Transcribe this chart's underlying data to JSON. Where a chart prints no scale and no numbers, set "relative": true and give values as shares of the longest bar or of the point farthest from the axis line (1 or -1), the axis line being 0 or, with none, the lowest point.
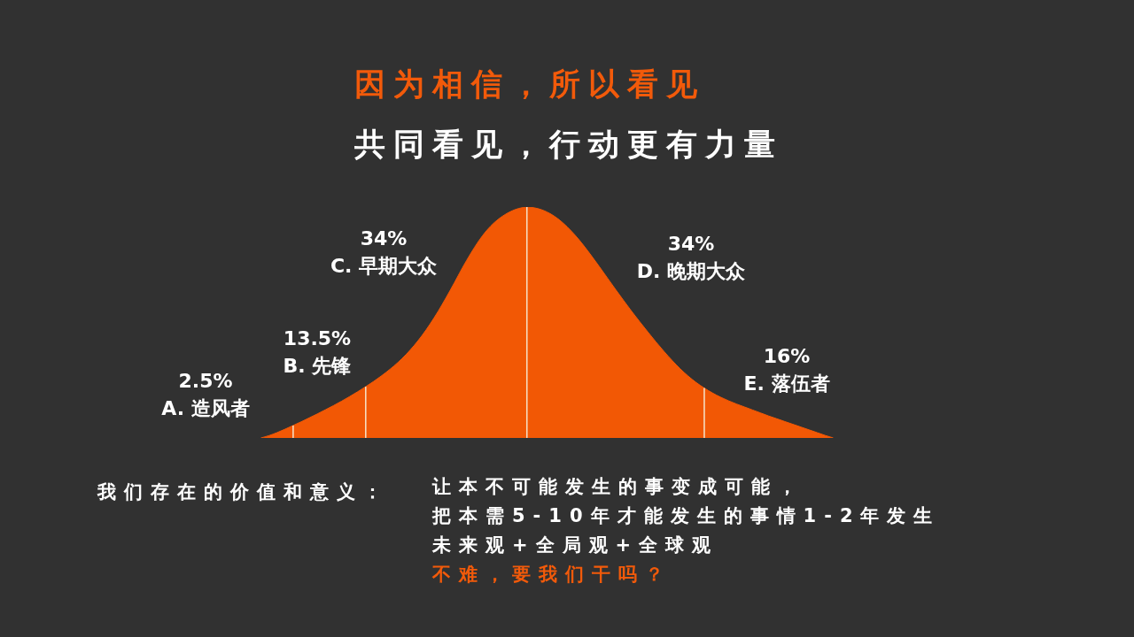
{
  "chart_data": {
    "type": "area",
    "relative": true,
    "tick_labels": false,
    "title": "因为相信，所以看见",
    "subtitle": "共同看见，行动更有力量",
    "categories": [
      null,
      null,
      null,
      null,
      null,
      null,
      null,
      null,
      null,
      null,
      null,
      null,
      null,
      null,
      null,
      null,
      null,
      null,
      null,
      null,
      null,
      null,
      null,
      null,
      null,
      null,
      null,
      null,
      null,
      null,
      null,
      null,
      null,
      null,
      null,
      null,
      null,
      null,
      null,
      null,
      null,
      null,
      null,
      null,
      null,
      null,
      null,
      null,
      null,
      null,
      null,
      null,
      null,
      null,
      null,
      null,
      null,
      null,
      null,
      null,
      null,
      null,
      null,
      null,
      null,
      null,
      null,
      null,
      null,
      null,
      null,
      null,
      null,
      null,
      null,
      null,
      null,
      null,
      null,
      null,
      null,
      null,
      null,
      null,
      null,
      null,
      null,
      null,
      null,
      null,
      null,
      null,
      null,
      null,
      null,
      null,
      null,
      null,
      null,
      null,
      null,
      null
    ],
    "series": [
      {
        "name": "A. 造风者",
        "color": "#f25805",
        "values": [
          null,
          null,
          null,
          null,
          null,
          null,
          null,
          null,
          null,
          null,
          null,
          null,
          null,
          null,
          null,
          0,
          0.01,
          0.023,
          0.038,
          0.054,
          null,
          null,
          null,
          null,
          null,
          null,
          null,
          null,
          null,
          null,
          null,
          null,
          null,
          null,
          null,
          null,
          null,
          null,
          null,
          null,
          null,
          null,
          null,
          null,
          null,
          null,
          null,
          null,
          null,
          null,
          null,
          null,
          null,
          null,
          null,
          null,
          null,
          null,
          null,
          null,
          null,
          null,
          null,
          null,
          null,
          null,
          null,
          null,
          null,
          null,
          null,
          null,
          null,
          null,
          null,
          null,
          null,
          null,
          null,
          null,
          null,
          null,
          null,
          null,
          null,
          null,
          null,
          null,
          null,
          null,
          null,
          null,
          null,
          null,
          null,
          null,
          null,
          null,
          null,
          null,
          null,
          null
        ]
      },
      {
        "name": "B. 先锋",
        "color": "#f25805",
        "values": [
          null,
          null,
          null,
          null,
          null,
          null,
          null,
          null,
          null,
          null,
          null,
          null,
          null,
          null,
          null,
          null,
          null,
          null,
          null,
          0.054,
          0.07,
          0.087,
          0.104,
          0.122,
          0.14,
          0.159,
          0.179,
          0.2,
          0.222,
          null,
          null,
          null,
          null,
          null,
          null,
          null,
          null,
          null,
          null,
          null,
          null,
          null,
          null,
          null,
          null,
          null,
          null,
          null,
          null,
          null,
          null,
          null,
          null,
          null,
          null,
          null,
          null,
          null,
          null,
          null,
          null,
          null,
          null,
          null,
          null,
          null,
          null,
          null,
          null,
          null,
          null,
          null,
          null,
          null,
          null,
          null,
          null,
          null,
          null,
          null,
          null,
          null,
          null,
          null,
          null,
          null,
          null,
          null,
          null,
          null,
          null,
          null,
          null,
          null,
          null,
          null,
          null,
          null,
          null,
          null,
          null,
          null
        ]
      },
      {
        "name": "C. 早期大众",
        "color": "#f25805",
        "values": [
          null,
          null,
          null,
          null,
          null,
          null,
          null,
          null,
          null,
          null,
          null,
          null,
          null,
          null,
          null,
          null,
          null,
          null,
          null,
          null,
          null,
          null,
          null,
          null,
          null,
          null,
          null,
          null,
          0.222,
          0.245,
          0.27,
          0.297,
          0.327,
          0.361,
          0.4,
          0.444,
          0.494,
          0.549,
          0.609,
          0.672,
          0.737,
          0.797,
          0.852,
          0.898,
          0.934,
          0.961,
          0.981,
          0.994,
          1,
          null,
          null,
          null,
          null,
          null,
          null,
          null,
          null,
          null,
          null,
          null,
          null,
          null,
          null,
          null,
          null,
          null,
          null,
          null,
          null,
          null,
          null,
          null,
          null,
          null,
          null,
          null,
          null,
          null,
          null,
          null,
          null,
          null,
          null,
          null,
          null,
          null,
          null,
          null,
          null,
          null,
          null,
          null,
          null,
          null,
          null,
          null,
          null,
          null,
          null,
          null,
          null,
          null
        ]
      },
      {
        "name": "D. 晚期大众",
        "color": "#f25805",
        "values": [
          null,
          null,
          null,
          null,
          null,
          null,
          null,
          null,
          null,
          null,
          null,
          null,
          null,
          null,
          null,
          null,
          null,
          null,
          null,
          null,
          null,
          null,
          null,
          null,
          null,
          null,
          null,
          null,
          null,
          null,
          null,
          null,
          null,
          null,
          null,
          null,
          null,
          null,
          null,
          null,
          null,
          null,
          null,
          null,
          null,
          null,
          null,
          null,
          1,
          0.996,
          0.986,
          0.969,
          0.945,
          0.914,
          0.877,
          0.835,
          0.789,
          0.741,
          0.692,
          0.643,
          0.595,
          0.548,
          0.503,
          0.459,
          0.416,
          0.375,
          0.336,
          0.3,
          0.268,
          0.24,
          0.216,
          null,
          null,
          null,
          null,
          null,
          null,
          null,
          null,
          null,
          null,
          null,
          null,
          null,
          null,
          null,
          null,
          null,
          null,
          null,
          null,
          null,
          null,
          null,
          null,
          null,
          null,
          null,
          null,
          null,
          null,
          null
        ]
      },
      {
        "name": "E. 落伍者",
        "color": "#f25805",
        "values": [
          null,
          null,
          null,
          null,
          null,
          null,
          null,
          null,
          null,
          null,
          null,
          null,
          null,
          null,
          null,
          null,
          null,
          null,
          null,
          null,
          null,
          null,
          null,
          null,
          null,
          null,
          null,
          null,
          null,
          null,
          null,
          null,
          null,
          null,
          null,
          null,
          null,
          null,
          null,
          null,
          null,
          null,
          null,
          null,
          null,
          null,
          null,
          null,
          null,
          null,
          null,
          null,
          null,
          null,
          null,
          null,
          null,
          null,
          null,
          null,
          null,
          null,
          null,
          null,
          null,
          null,
          null,
          null,
          null,
          null,
          0.216,
          0.195,
          0.177,
          0.161,
          0.147,
          0.134,
          0.121,
          0.108,
          0.095,
          0.083,
          0.071,
          0.059,
          0.047,
          0.035,
          0.023,
          0.011,
          0,
          null,
          null,
          null,
          null,
          null,
          null,
          null,
          null,
          null,
          null,
          null,
          null,
          null,
          null,
          null
        ]
      }
    ],
    "annotations": [
      "2.5%",
      "13.5%",
      "34%",
      "34%",
      "16%",
      "我们存在的价值和意义：",
      "让本不可能发生的事变成可能，",
      "把本需5-10年才能发生的事情1-2年发生",
      "未来观+全局观+全球观",
      "不难，要我们干吗？"
    ]
  }
}
